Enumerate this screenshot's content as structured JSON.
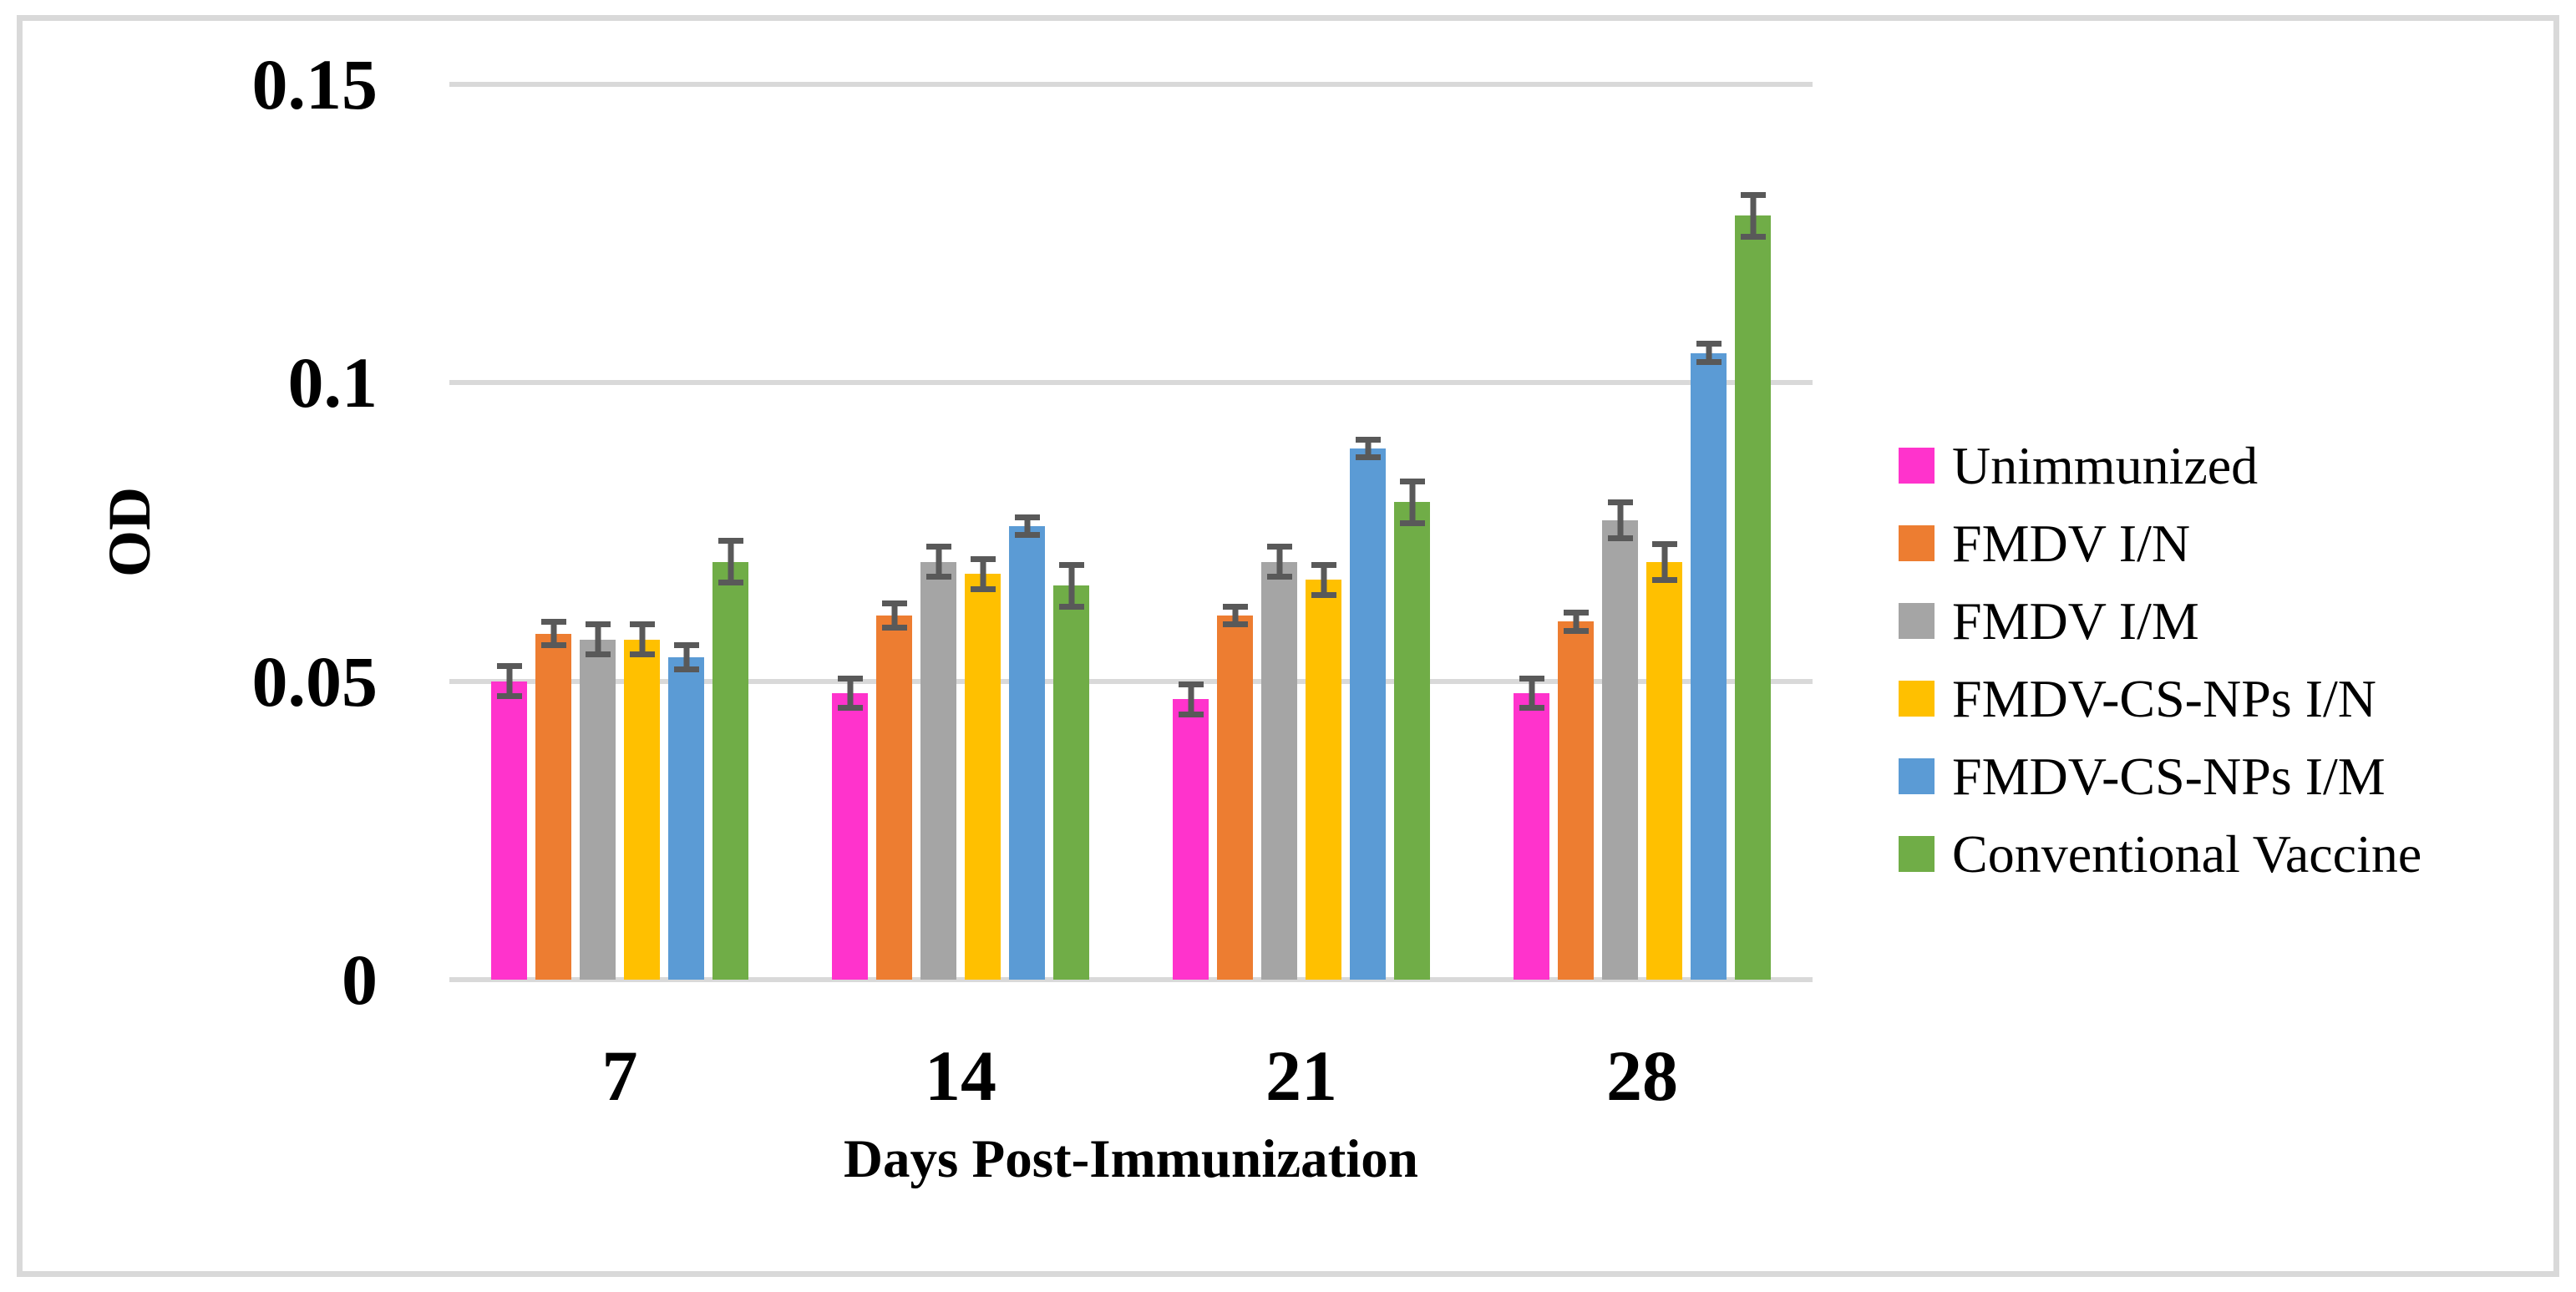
{
  "figure": {
    "background": "#FFFFFF",
    "frame_color": "#D9D9D9"
  },
  "chart_data": {
    "type": "bar",
    "title": "",
    "xlabel": "Days Post-Immunization",
    "ylabel": "OD",
    "categories": [
      "7",
      "14",
      "21",
      "28"
    ],
    "ylim": [
      0,
      0.15
    ],
    "yticks": [
      {
        "value": 0,
        "label": "0"
      },
      {
        "value": 0.05,
        "label": "0.05"
      },
      {
        "value": 0.1,
        "label": "0.1"
      },
      {
        "value": 0.15,
        "label": "0.15"
      }
    ],
    "grid": "horizontal",
    "legend_position": "right",
    "error_bars": true,
    "series": [
      {
        "name": "Unimmunized",
        "color": "#FF33CC",
        "values": [
          0.05,
          0.048,
          0.047,
          0.048
        ],
        "errors": [
          0.003,
          0.003,
          0.003,
          0.003
        ]
      },
      {
        "name": "FMDV I/N",
        "color": "#ED7D31",
        "values": [
          0.058,
          0.061,
          0.061,
          0.06
        ],
        "errors": [
          0.0025,
          0.0025,
          0.002,
          0.002
        ]
      },
      {
        "name": "FMDV I/M",
        "color": "#A5A5A5",
        "values": [
          0.057,
          0.07,
          0.07,
          0.077
        ],
        "errors": [
          0.003,
          0.003,
          0.003,
          0.0035
        ]
      },
      {
        "name": "FMDV-CS-NPs I/N",
        "color": "#FFC000",
        "values": [
          0.057,
          0.068,
          0.067,
          0.07
        ],
        "errors": [
          0.003,
          0.003,
          0.003,
          0.0035
        ]
      },
      {
        "name": "FMDV-CS-NPs I/M",
        "color": "#5B9BD5",
        "values": [
          0.054,
          0.076,
          0.089,
          0.105
        ],
        "errors": [
          0.0025,
          0.002,
          0.002,
          0.002
        ]
      },
      {
        "name": "Conventional Vaccine",
        "color": "#70AD47",
        "values": [
          0.07,
          0.066,
          0.08,
          0.128
        ],
        "errors": [
          0.004,
          0.004,
          0.004,
          0.004
        ]
      }
    ],
    "colors": {
      "gridline": "#D9D9D9",
      "axis_line": "#D9D9D9",
      "error_bar": "#595959",
      "text": "#000000"
    }
  }
}
